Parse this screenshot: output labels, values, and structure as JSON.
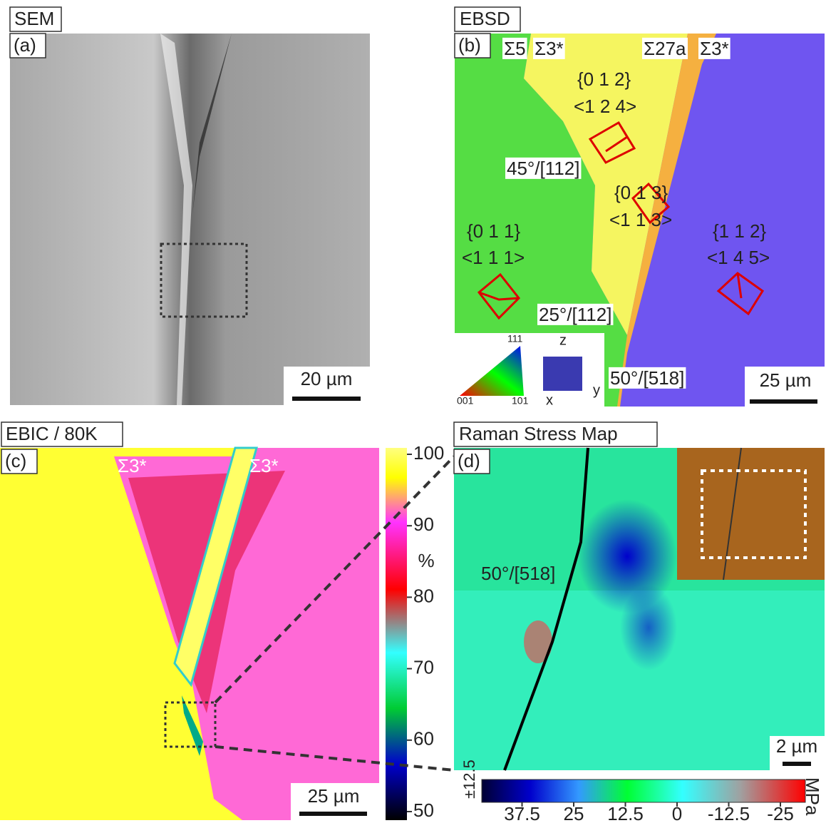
{
  "panels": {
    "a": {
      "title": "SEM",
      "label": "(a)",
      "scale_bar": "20 µm"
    },
    "b": {
      "title": "EBSD",
      "label": "(b)",
      "scale_bar": "25 µm",
      "annotations": [
        "Σ5",
        "Σ3*",
        "Σ27a",
        "Σ3*",
        "{0 1 2}",
        "<1 2 4>",
        "45°/[112]",
        "{0 1 3}",
        "<1 1 3>",
        "{0 1 1}",
        "<1 1 1>",
        "{1 1 2}",
        "<1 4 5>",
        "25°/[112]",
        "50°/[518]"
      ],
      "ipf_labels": [
        "111",
        "001",
        "101"
      ],
      "axes": [
        "z",
        "y",
        "x"
      ]
    },
    "c": {
      "title": "EBIC / 80K",
      "label": "(c)",
      "scale_bar": "25 µm",
      "annotations": [
        "Σ3*",
        "Σ3*"
      ],
      "colorbar": {
        "unit": "%",
        "ticks": [
          100,
          90,
          80,
          70,
          60,
          50
        ]
      }
    },
    "d": {
      "title": "Raman Stress Map",
      "label": "(d)",
      "scale_bar": "2 µm",
      "annotations": [
        "50°/[518]"
      ],
      "colorbar": {
        "unit": "MPa",
        "error_label": "±12.5",
        "ticks": [
          37.5,
          25,
          12.5,
          0,
          -12.5,
          -25
        ]
      }
    }
  }
}
